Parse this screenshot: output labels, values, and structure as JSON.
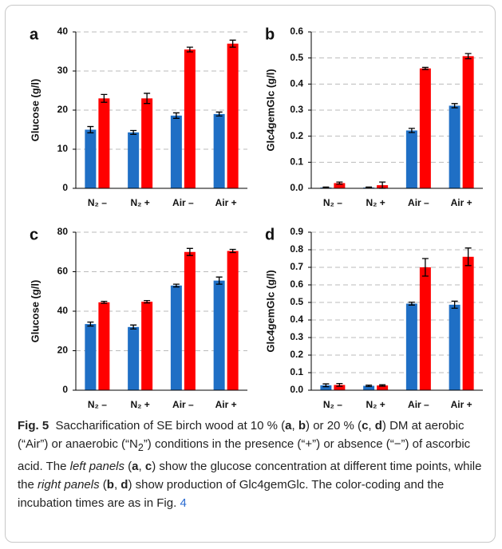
{
  "chart_data": [
    {
      "type": "bar",
      "label": "a",
      "y_label": "Glucose (g/l)",
      "categories": [
        "N₂ –",
        "N₂ +",
        "Air –",
        "Air +"
      ],
      "series": [
        {
          "color": "#1f6fc5",
          "values": [
            15,
            14.3,
            18.6,
            19
          ],
          "errors": [
            0.8,
            0.5,
            0.7,
            0.5
          ]
        },
        {
          "color": "#ff0000",
          "values": [
            23,
            23,
            35.5,
            37
          ],
          "errors": [
            1,
            1.3,
            0.6,
            0.9
          ]
        }
      ],
      "ylim": [
        0,
        40
      ],
      "yticks": [
        0,
        10,
        20,
        30,
        40
      ],
      "grid": true
    },
    {
      "type": "bar",
      "label": "b",
      "y_label": "Glc4gemGlc (g/l)",
      "categories": [
        "N₂ –",
        "N₂ +",
        "Air –",
        "Air +"
      ],
      "series": [
        {
          "color": "#1f6fc5",
          "values": [
            0.003,
            0.003,
            0.222,
            0.317
          ],
          "errors": [
            0.002,
            0.002,
            0.008,
            0.008
          ]
        },
        {
          "color": "#ff0000",
          "values": [
            0.02,
            0.012,
            0.46,
            0.507
          ],
          "errors": [
            0.004,
            0.012,
            0.004,
            0.01
          ]
        }
      ],
      "ylim": [
        0,
        0.6
      ],
      "yticks": [
        {
          "value": 0,
          "label": "0.0"
        },
        0.1,
        0.2,
        0.3,
        0.4,
        0.5,
        0.6
      ],
      "grid": true
    },
    {
      "type": "bar",
      "label": "c",
      "y_label": "Glucose (g/l)",
      "categories": [
        "N₂ –",
        "N₂ +",
        "Air –",
        "Air +"
      ],
      "series": [
        {
          "color": "#1f6fc5",
          "values": [
            33.5,
            32,
            53,
            55.5
          ],
          "errors": [
            1,
            1,
            0.7,
            1.8
          ]
        },
        {
          "color": "#ff0000",
          "values": [
            44.5,
            44.8,
            70,
            70.5
          ],
          "errors": [
            0.5,
            0.6,
            1.8,
            0.8
          ]
        }
      ],
      "ylim": [
        0,
        80
      ],
      "yticks": [
        0,
        20,
        40,
        60,
        80
      ],
      "grid": true
    },
    {
      "type": "bar",
      "label": "d",
      "y_label": "Glc4gemGlc (g/l)",
      "categories": [
        "N₂ –",
        "N₂ +",
        "Air –",
        "Air +"
      ],
      "series": [
        {
          "color": "#1f6fc5",
          "values": [
            0.028,
            0.025,
            0.493,
            0.487
          ],
          "errors": [
            0.008,
            0.004,
            0.008,
            0.02
          ]
        },
        {
          "color": "#ff0000",
          "values": [
            0.03,
            0.027,
            0.7,
            0.76
          ],
          "errors": [
            0.008,
            0.004,
            0.05,
            0.05
          ]
        }
      ],
      "ylim": [
        0,
        0.9
      ],
      "yticks": [
        {
          "value": 0,
          "label": "0.0"
        },
        0.1,
        0.2,
        0.3,
        0.4,
        0.5,
        0.6,
        0.7,
        0.8,
        0.9
      ],
      "grid": true
    }
  ],
  "caption": [
    "Fig. 5",
    "Saccharification of SE birch wood at 10 % (",
    "a",
    ", ",
    "b",
    ") or 20 % (",
    "c",
    ", ",
    "d",
    ") DM at aerobic (“Air”) or anaerobic (“N",
    "2",
    "”) conditions in the presence (“+”) or absence (“−”) of ascorbic acid. The ",
    "left panels",
    " (",
    "a",
    ", ",
    "c",
    ") show the glucose concentration at different time points, while the ",
    "right panels",
    " (",
    "b",
    ", ",
    "d",
    ") show production of Glc4gemGlc. The color-coding and the incubation times are as in Fig. ",
    "4"
  ]
}
